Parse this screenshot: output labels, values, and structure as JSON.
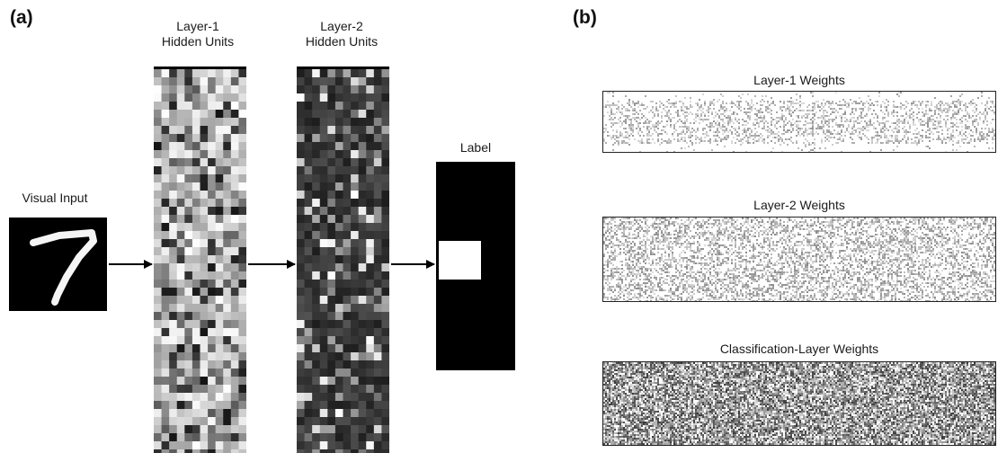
{
  "panel_a": {
    "letter": "(a)",
    "visual_input_label": "Visual Input",
    "layer1_label": [
      "Layer-1",
      "Hidden Units"
    ],
    "layer2_label": [
      "Layer-2",
      "Hidden Units"
    ],
    "label_label": "Label",
    "digit": "7"
  },
  "panel_b": {
    "letter": "(b)",
    "weights": [
      {
        "title": "Layer-1 Weights"
      },
      {
        "title": "Layer-2 Weights"
      },
      {
        "title": "Classification-Layer Weights"
      }
    ]
  }
}
